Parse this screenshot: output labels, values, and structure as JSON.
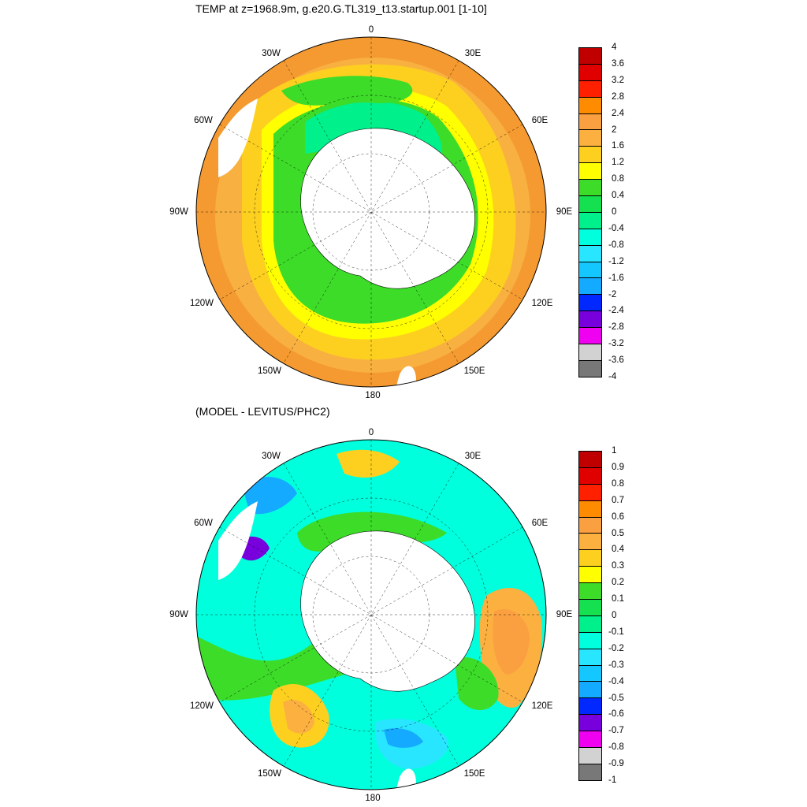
{
  "panel1": {
    "title": "TEMP at z=1968.9m, g.e20.G.TL319_t13.startup.001 [1-10]",
    "colorbar": {
      "labels": [
        "4",
        "3.6",
        "3.2",
        "2.8",
        "2.4",
        "2",
        "1.6",
        "1.2",
        "0.8",
        "0.4",
        "0",
        "-0.4",
        "-0.8",
        "-1.2",
        "-1.6",
        "-2",
        "-2.4",
        "-2.8",
        "-3.2",
        "-3.6",
        "-4"
      ],
      "colors": [
        "#c00000",
        "#e00000",
        "#ff2000",
        "#ff8c00",
        "#fba040",
        "#fbb040",
        "#fdd020",
        "#ffff00",
        "#3cdc28",
        "#14e050",
        "#00f08c",
        "#00ffdc",
        "#28e6ff",
        "#14c8ff",
        "#14aaff",
        "#0028ff",
        "#7800dc",
        "#f000f0",
        "#d2d2d2",
        "#787878"
      ]
    }
  },
  "panel2": {
    "title": "(MODEL - LEVITUS/PHC2)",
    "colorbar": {
      "labels": [
        "1",
        "0.9",
        "0.8",
        "0.7",
        "0.6",
        "0.5",
        "0.4",
        "0.3",
        "0.2",
        "0.1",
        "0",
        "-0.1",
        "-0.2",
        "-0.3",
        "-0.4",
        "-0.5",
        "-0.6",
        "-0.7",
        "-0.8",
        "-0.9",
        "-1"
      ],
      "colors": [
        "#c00000",
        "#e00000",
        "#ff2000",
        "#ff8c00",
        "#fba040",
        "#fbb040",
        "#fdd020",
        "#ffff00",
        "#3cdc28",
        "#14e050",
        "#00f08c",
        "#00ffdc",
        "#28e6ff",
        "#14c8ff",
        "#14aaff",
        "#0028ff",
        "#7800dc",
        "#f000f0",
        "#d2d2d2",
        "#787878"
      ]
    }
  },
  "map_labels": {
    "lon_0": "0",
    "lon_30e": "30E",
    "lon_60e": "60E",
    "lon_90e": "90E",
    "lon_120e": "120E",
    "lon_150e": "150E",
    "lon_180": "180",
    "lon_150w": "150W",
    "lon_120w": "120W",
    "lon_90w": "90W",
    "lon_60w": "60W",
    "lon_30w": "30W"
  },
  "colors": {
    "land": "#ffffff",
    "outline": "#000000"
  }
}
